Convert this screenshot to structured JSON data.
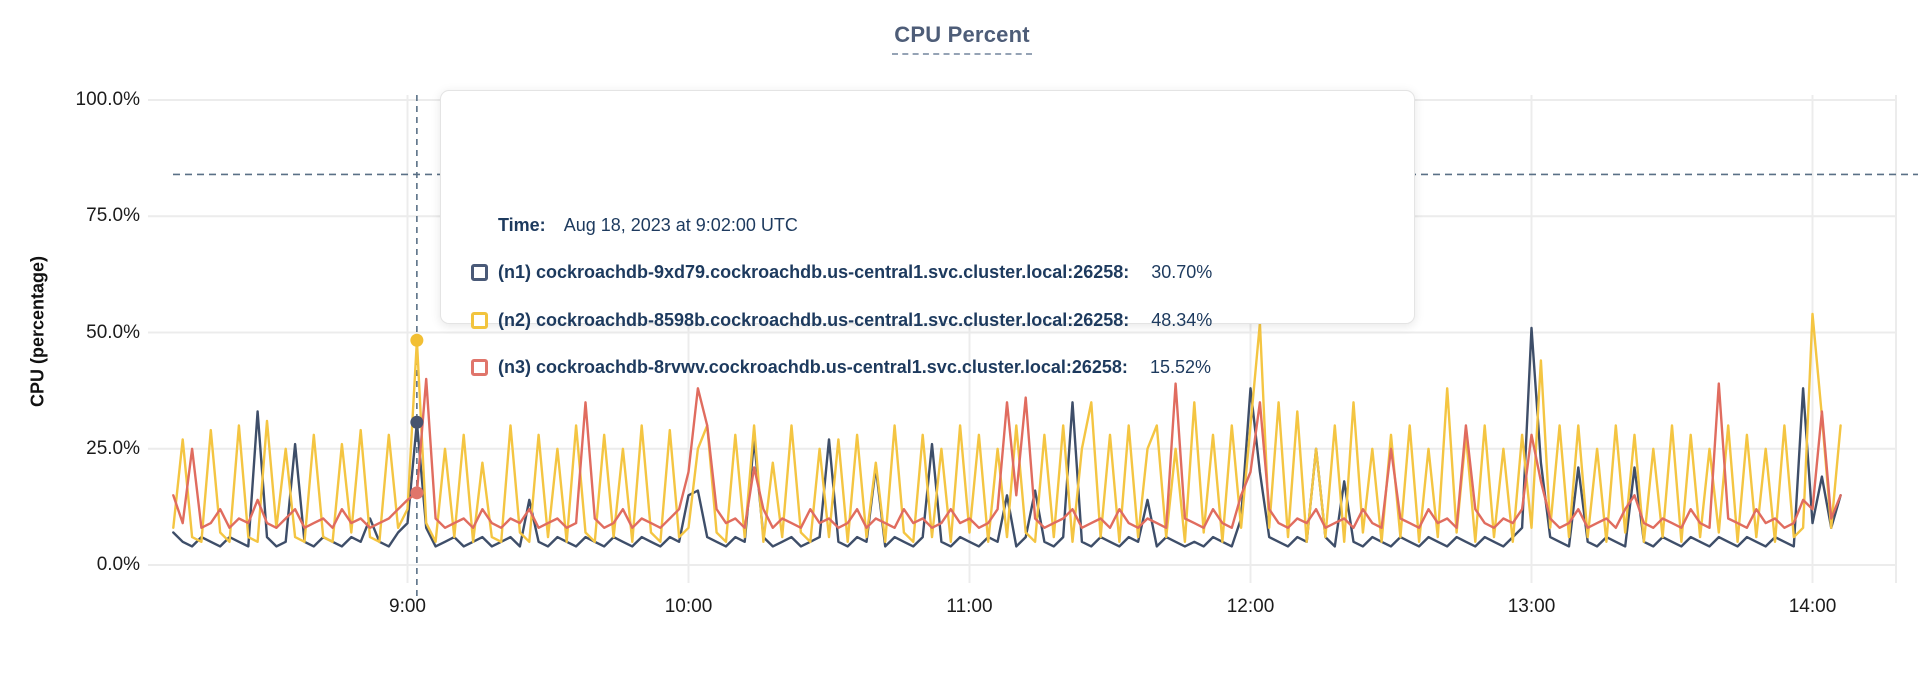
{
  "header": {
    "title": "CPU Percent"
  },
  "y_axis": {
    "label": "CPU (percentage)"
  },
  "tooltip": {
    "time_label": "Time:",
    "time_value": "Aug 18, 2023 at 9:02:00 UTC",
    "rows": [
      {
        "label": "(n1) cockroachdb-9xd79.cockroachdb.us-central1.svc.cluster.local:26258:",
        "value": "30.70%",
        "color": "#4a5a78"
      },
      {
        "label": "(n2) cockroachdb-8598b.cockroachdb.us-central1.svc.cluster.local:26258:",
        "value": "48.34%",
        "color": "#f2c43e"
      },
      {
        "label": "(n3) cockroachdb-8rvwv.cockroachdb.us-central1.svc.cluster.local:26258:",
        "value": "15.52%",
        "color": "#e0756b"
      }
    ]
  },
  "chart_data": {
    "type": "line",
    "title": "CPU Percent",
    "ylabel": "CPU (percentage)",
    "ylim": [
      0,
      100
    ],
    "grid": true,
    "legend_position": "tooltip-overlay",
    "y_tick_values": [
      0,
      25,
      50,
      75,
      100
    ],
    "y_tick_labels": [
      "0.0%",
      "25.0%",
      "50.0%",
      "75.0%",
      "100.0%"
    ],
    "x_tick_labels": [
      "9:00",
      "10:00",
      "11:00",
      "12:00",
      "13:00",
      "14:00"
    ],
    "x_tick_minutes": [
      540,
      600,
      660,
      720,
      780,
      840
    ],
    "x_start_minute": 490,
    "x_step_minutes": 2,
    "threshold_percent": 84,
    "hover_minute": 542,
    "hover_time": "Aug 18, 2023 at 9:02:00 UTC",
    "hover_values": [
      30.7,
      48.34,
      15.52
    ],
    "series": [
      {
        "name": "(n1) cockroachdb-9xd79.cockroachdb.us-central1.svc.cluster.local:26258",
        "color": "#3e4e69",
        "values": [
          7,
          5,
          4,
          6,
          5,
          4,
          6,
          5,
          4,
          33,
          6,
          4,
          5,
          26,
          5,
          4,
          6,
          5,
          4,
          6,
          5,
          10,
          5,
          4,
          7,
          9,
          30.7,
          8,
          4,
          5,
          6,
          4,
          5,
          6,
          4,
          5,
          6,
          4,
          14,
          5,
          4,
          6,
          5,
          4,
          6,
          5,
          4,
          6,
          5,
          4,
          6,
          5,
          4,
          6,
          5,
          15,
          16,
          6,
          5,
          4,
          6,
          5,
          27,
          6,
          4,
          5,
          6,
          4,
          5,
          6,
          27,
          5,
          4,
          6,
          5,
          21,
          4,
          6,
          5,
          4,
          6,
          26,
          5,
          4,
          6,
          5,
          4,
          6,
          5,
          15,
          4,
          6,
          16,
          5,
          4,
          6,
          35,
          5,
          4,
          6,
          5,
          4,
          6,
          5,
          14,
          4,
          6,
          5,
          4,
          5,
          4,
          6,
          5,
          4,
          10,
          38,
          20,
          6,
          5,
          4,
          6,
          5,
          25,
          6,
          4,
          18,
          5,
          4,
          6,
          5,
          4,
          6,
          5,
          4,
          6,
          5,
          4,
          6,
          5,
          4,
          6,
          5,
          4,
          6,
          8,
          51,
          22,
          6,
          5,
          4,
          21,
          5,
          4,
          6,
          5,
          4,
          21,
          5,
          4,
          6,
          5,
          4,
          6,
          5,
          4,
          6,
          5,
          4,
          6,
          5,
          4,
          6,
          5,
          4,
          38,
          9,
          19,
          8,
          15
        ]
      },
      {
        "name": "(n2) cockroachdb-8598b.cockroachdb.us-central1.svc.cluster.local:26258",
        "color": "#f4c542",
        "values": [
          8,
          27,
          6,
          5,
          29,
          7,
          5,
          30,
          6,
          5,
          31,
          8,
          25,
          6,
          5,
          28,
          6,
          5,
          26,
          7,
          29,
          6,
          5,
          28,
          8,
          12,
          48.3,
          9,
          5,
          25,
          6,
          28,
          5,
          22,
          6,
          5,
          30,
          7,
          5,
          28,
          6,
          25,
          5,
          30,
          7,
          5,
          28,
          6,
          25,
          5,
          30,
          7,
          5,
          29,
          6,
          8,
          25,
          30,
          7,
          5,
          28,
          6,
          30,
          5,
          22,
          6,
          30,
          7,
          5,
          25,
          6,
          27,
          5,
          28,
          6,
          22,
          5,
          30,
          7,
          5,
          28,
          6,
          25,
          5,
          30,
          7,
          28,
          5,
          25,
          6,
          30,
          7,
          5,
          28,
          6,
          30,
          5,
          25,
          35,
          6,
          28,
          5,
          30,
          6,
          25,
          30,
          6,
          25,
          5,
          35,
          7,
          28,
          5,
          30,
          8,
          30,
          52,
          8,
          35,
          6,
          33,
          5,
          25,
          6,
          30,
          5,
          35,
          7,
          25,
          5,
          28,
          6,
          30,
          5,
          25,
          6,
          38,
          7,
          28,
          5,
          30,
          6,
          25,
          5,
          28,
          8,
          44,
          8,
          30,
          6,
          30,
          6,
          25,
          5,
          30,
          7,
          28,
          5,
          25,
          6,
          30,
          5,
          28,
          6,
          25,
          7,
          30,
          5,
          28,
          6,
          25,
          5,
          30,
          6,
          8,
          54,
          32,
          8,
          30
        ]
      },
      {
        "name": "(n3) cockroachdb-8rvwv.cockroachdb.us-central1.svc.cluster.local:26258",
        "color": "#e06c5f",
        "values": [
          15,
          9,
          25,
          8,
          9,
          12,
          8,
          10,
          9,
          14,
          9,
          8,
          10,
          12,
          8,
          9,
          10,
          8,
          12,
          9,
          10,
          8,
          9,
          10,
          12,
          14,
          15.5,
          40,
          10,
          8,
          9,
          10,
          8,
          12,
          9,
          8,
          10,
          9,
          12,
          8,
          9,
          10,
          8,
          9,
          35,
          10,
          8,
          9,
          12,
          8,
          10,
          9,
          8,
          10,
          12,
          20,
          38,
          30,
          12,
          9,
          10,
          8,
          21,
          12,
          8,
          10,
          9,
          8,
          12,
          9,
          10,
          8,
          9,
          12,
          8,
          10,
          9,
          8,
          12,
          9,
          10,
          8,
          9,
          12,
          9,
          10,
          8,
          9,
          12,
          35,
          15,
          36,
          10,
          8,
          9,
          10,
          12,
          8,
          9,
          10,
          8,
          12,
          9,
          8,
          10,
          9,
          8,
          39,
          10,
          9,
          8,
          12,
          9,
          8,
          15,
          20,
          35,
          12,
          9,
          8,
          10,
          9,
          12,
          8,
          9,
          10,
          8,
          12,
          9,
          8,
          25,
          10,
          9,
          8,
          12,
          9,
          10,
          8,
          30,
          12,
          9,
          8,
          10,
          9,
          12,
          28,
          18,
          10,
          8,
          9,
          12,
          8,
          9,
          10,
          8,
          12,
          15,
          9,
          8,
          10,
          9,
          8,
          12,
          9,
          8,
          39,
          10,
          9,
          8,
          12,
          9,
          10,
          8,
          9,
          14,
          12,
          33,
          10,
          15
        ]
      }
    ]
  },
  "colors": {
    "grid": "#ececec",
    "dashed_guides": "#5a7086",
    "tooltip_text": "#1d3a5e",
    "title_text": "#4e5d78",
    "tick_text": "#1b1b1b"
  }
}
